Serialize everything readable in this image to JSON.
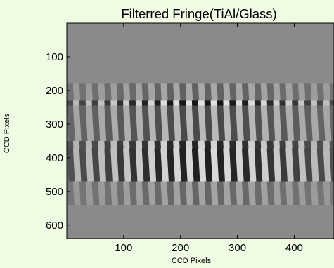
{
  "chart_data": {
    "type": "heatmap",
    "title": "Filterred Fringe(TiAl/Glass)",
    "xlabel": "CCD Pixels",
    "ylabel": "CCD Pixels",
    "xlim": [
      0,
      470
    ],
    "ylim": [
      640,
      0
    ],
    "x_ticks": [
      100,
      200,
      300,
      400
    ],
    "y_ticks": [
      100,
      200,
      300,
      400,
      500,
      600
    ],
    "colormap": "gray",
    "background_gray": "#8a8a8a",
    "fringe_period_px": 22,
    "fringe_tilt_deg": 4,
    "bands": [
      {
        "y_from": 180,
        "y_to": 230,
        "contrast": 0.35
      },
      {
        "y_from": 230,
        "y_to": 245,
        "contrast": 1.0
      },
      {
        "y_from": 245,
        "y_to": 350,
        "contrast": 0.55
      },
      {
        "y_from": 350,
        "y_to": 372,
        "contrast": 0.85
      },
      {
        "y_from": 372,
        "y_to": 470,
        "contrast": 0.9
      },
      {
        "y_from": 470,
        "y_to": 540,
        "contrast": 0.3
      }
    ]
  }
}
